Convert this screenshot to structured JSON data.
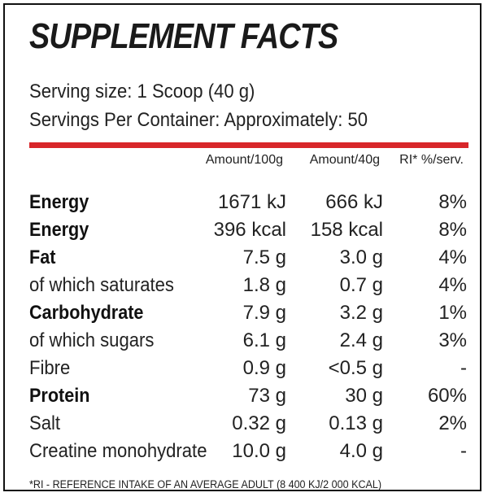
{
  "title": "SUPPLEMENT FACTS",
  "serving_size": "Serving size: 1 Scoop (40 g)",
  "servings_per_container": "Servings Per Container: Approximately: 50",
  "accent_color": "#d8262a",
  "columns": {
    "per100": "Amount/100g",
    "per40": "Amount/40g",
    "ri": "RI* %/serv."
  },
  "rows": [
    {
      "label": "Energy",
      "bold": true,
      "per100": "1671 kJ",
      "per40": "666 kJ",
      "ri": "8%"
    },
    {
      "label": "Energy",
      "bold": true,
      "per100": "396 kcal",
      "per40": "158 kcal",
      "ri": "8%"
    },
    {
      "label": "Fat",
      "bold": true,
      "per100": "7.5 g",
      "per40": "3.0 g",
      "ri": "4%"
    },
    {
      "label": "of which saturates",
      "bold": false,
      "per100": "1.8 g",
      "per40": "0.7 g",
      "ri": "4%"
    },
    {
      "label": "Carbohydrate",
      "bold": true,
      "per100": "7.9 g",
      "per40": "3.2 g",
      "ri": "1%"
    },
    {
      "label": "of which sugars",
      "bold": false,
      "per100": "6.1 g",
      "per40": "2.4 g",
      "ri": "3%"
    },
    {
      "label": "Fibre",
      "bold": false,
      "per100": "0.9 g",
      "per40": "<0.5 g",
      "ri": "-"
    },
    {
      "label": "Protein",
      "bold": true,
      "per100": "73 g",
      "per40": "30 g",
      "ri": "60%"
    },
    {
      "label": "Salt",
      "bold": false,
      "per100": "0.32 g",
      "per40": "0.13 g",
      "ri": "2%"
    },
    {
      "label": "Creatine monohydrate",
      "bold": false,
      "per100": "10.0 g",
      "per40": "4.0 g",
      "ri": "-"
    }
  ],
  "footnote": "*RI - REFERENCE INTAKE OF AN AVERAGE ADULT (8 400 KJ/2 000 KCAL)"
}
